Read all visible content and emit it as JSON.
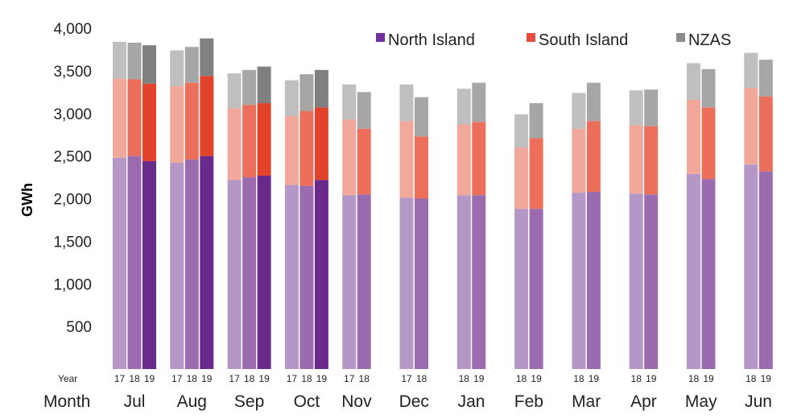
{
  "chart_data": {
    "type": "bar",
    "stacked": true,
    "ylabel": "GWh",
    "ylim": [
      0,
      4000
    ],
    "yticks": [
      "500",
      "1,000",
      "1,500",
      "2,000",
      "2,500",
      "3,000",
      "3,500",
      "4,000"
    ],
    "ytick_values": [
      500,
      1000,
      1500,
      2000,
      2500,
      3000,
      3500,
      4000
    ],
    "row_labels": {
      "year": "Year",
      "month": "Month"
    },
    "legend": {
      "position": "top-right",
      "entries": [
        "North Island",
        "South Island",
        "NZAS"
      ]
    },
    "colors": {
      "North Island": [
        "#b497c6",
        "#9b6bb0",
        "#6a2a8c"
      ],
      "South Island": [
        "#f2a79b",
        "#ec6f5c",
        "#e2432a"
      ],
      "NZAS": [
        "#bfbfbf",
        "#a6a6a6",
        "#808080"
      ],
      "legend": [
        "#7030a0",
        "#e84c3d",
        "#8c8c8c"
      ]
    },
    "groups": [
      {
        "month": "Jul",
        "bars": [
          {
            "year": "17",
            "shade": 0,
            "values": [
              2480,
              930,
              430
            ]
          },
          {
            "year": "18",
            "shade": 1,
            "values": [
              2500,
              900,
              430
            ]
          },
          {
            "year": "19",
            "shade": 2,
            "values": [
              2440,
              910,
              450
            ]
          }
        ]
      },
      {
        "month": "Aug",
        "bars": [
          {
            "year": "17",
            "shade": 0,
            "values": [
              2420,
              900,
              420
            ]
          },
          {
            "year": "18",
            "shade": 1,
            "values": [
              2460,
              900,
              420
            ]
          },
          {
            "year": "19",
            "shade": 2,
            "values": [
              2500,
              940,
              440
            ]
          }
        ]
      },
      {
        "month": "Sep",
        "bars": [
          {
            "year": "17",
            "shade": 0,
            "values": [
              2220,
              840,
              410
            ]
          },
          {
            "year": "18",
            "shade": 1,
            "values": [
              2250,
              850,
              410
            ]
          },
          {
            "year": "19",
            "shade": 2,
            "values": [
              2270,
              850,
              430
            ]
          }
        ]
      },
      {
        "month": "Oct",
        "bars": [
          {
            "year": "17",
            "shade": 0,
            "values": [
              2160,
              810,
              420
            ]
          },
          {
            "year": "18",
            "shade": 1,
            "values": [
              2150,
              880,
              430
            ]
          },
          {
            "year": "19",
            "shade": 2,
            "values": [
              2220,
              850,
              440
            ]
          }
        ]
      },
      {
        "month": "Nov",
        "bars": [
          {
            "year": "17",
            "shade": 0,
            "values": [
              2040,
              890,
              410
            ]
          },
          {
            "year": "18",
            "shade": 1,
            "values": [
              2050,
              770,
              430
            ]
          }
        ]
      },
      {
        "month": "Dec",
        "bars": [
          {
            "year": "17",
            "shade": 0,
            "values": [
              2010,
              900,
              430
            ]
          },
          {
            "year": "18",
            "shade": 1,
            "values": [
              2000,
              730,
              460
            ]
          }
        ]
      },
      {
        "month": "Jan",
        "bars": [
          {
            "year": "18",
            "shade": 0,
            "values": [
              2040,
              830,
              420
            ]
          },
          {
            "year": "19",
            "shade": 1,
            "values": [
              2040,
              860,
              460
            ]
          }
        ]
      },
      {
        "month": "Feb",
        "bars": [
          {
            "year": "18",
            "shade": 0,
            "values": [
              1880,
              720,
              390
            ]
          },
          {
            "year": "19",
            "shade": 1,
            "values": [
              1880,
              830,
              410
            ]
          }
        ]
      },
      {
        "month": "Mar",
        "bars": [
          {
            "year": "18",
            "shade": 0,
            "values": [
              2070,
              750,
              420
            ]
          },
          {
            "year": "19",
            "shade": 1,
            "values": [
              2080,
              830,
              450
            ]
          }
        ]
      },
      {
        "month": "Apr",
        "bars": [
          {
            "year": "18",
            "shade": 0,
            "values": [
              2060,
              800,
              410
            ]
          },
          {
            "year": "19",
            "shade": 1,
            "values": [
              2050,
              800,
              430
            ]
          }
        ]
      },
      {
        "month": "May",
        "bars": [
          {
            "year": "18",
            "shade": 0,
            "values": [
              2290,
              870,
              430
            ]
          },
          {
            "year": "19",
            "shade": 1,
            "values": [
              2230,
              840,
              450
            ]
          }
        ]
      },
      {
        "month": "Jun",
        "bars": [
          {
            "year": "18",
            "shade": 0,
            "values": [
              2400,
              900,
              410
            ]
          },
          {
            "year": "19",
            "shade": 1,
            "values": [
              2320,
              880,
              430
            ]
          }
        ]
      }
    ]
  }
}
